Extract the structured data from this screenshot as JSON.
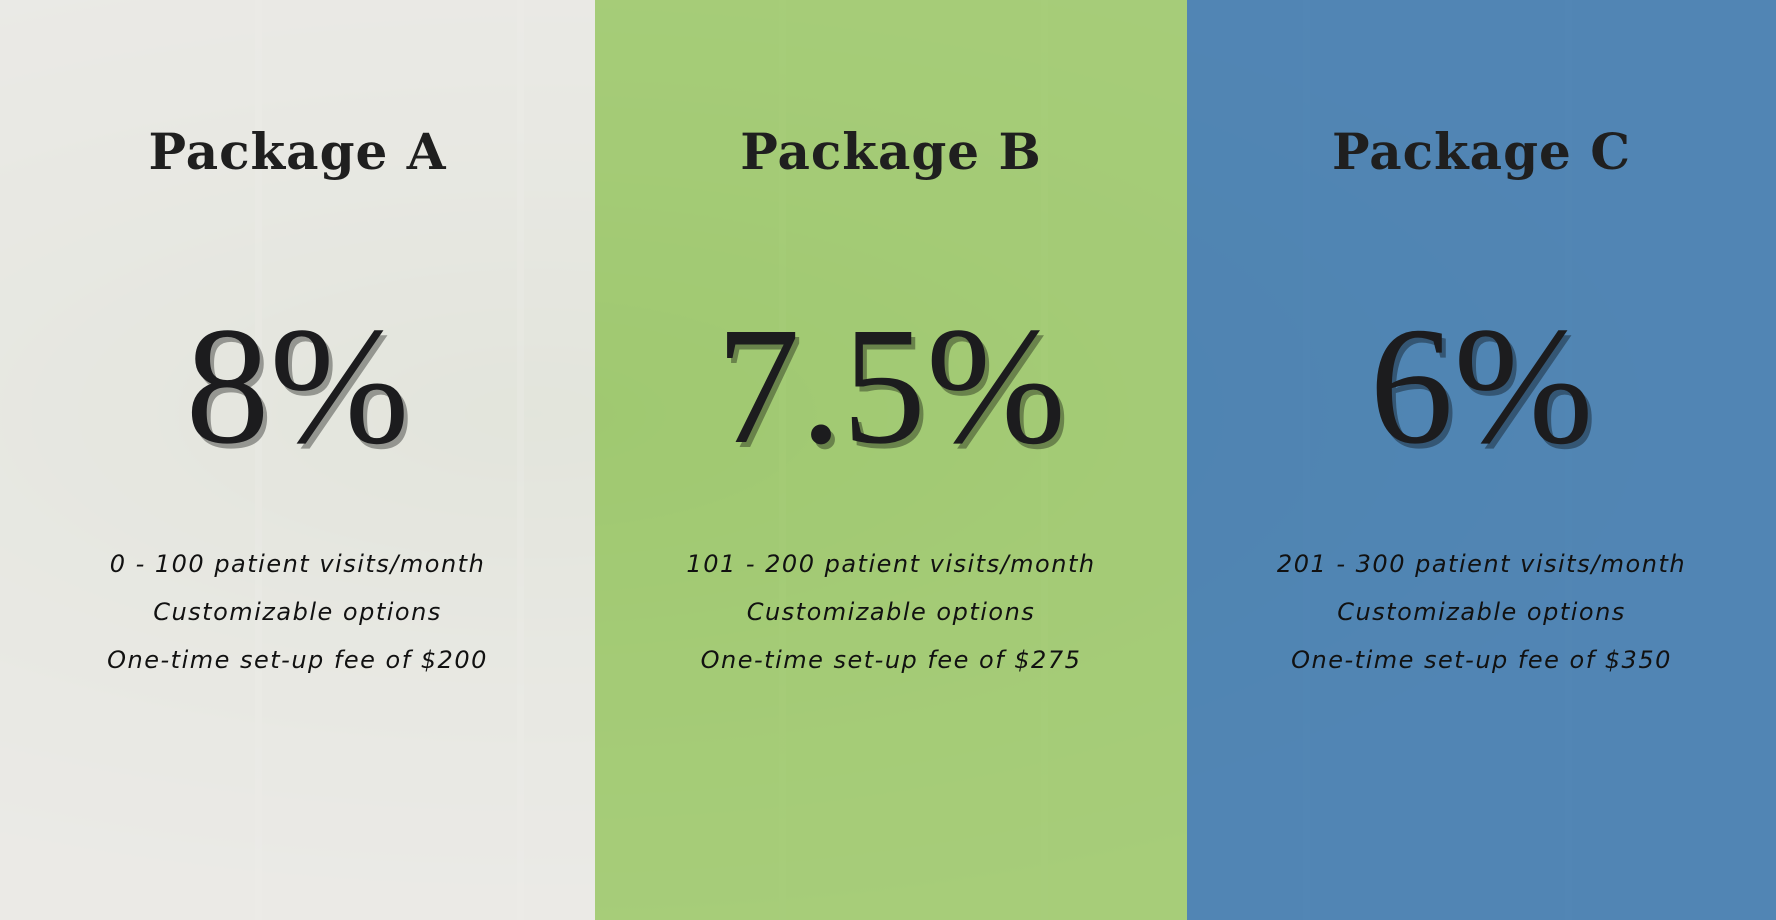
{
  "colors": {
    "package_a": "#ebe9e6",
    "package_b": "#a5c977",
    "package_c": "#4a7fae"
  },
  "packages": [
    {
      "title": "Package A",
      "rate": "8%",
      "visits": "0 - 100 patient visits/month",
      "options": "Customizable options",
      "fee": "One-time set-up fee of $200"
    },
    {
      "title": "Package B",
      "rate": "7.5%",
      "visits": "101 - 200 patient visits/month",
      "options": "Customizable options",
      "fee": "One-time set-up fee of $275"
    },
    {
      "title": "Package C",
      "rate": "6%",
      "visits": "201 - 300 patient visits/month",
      "options": "Customizable options",
      "fee": "One-time set-up fee of $350"
    }
  ]
}
